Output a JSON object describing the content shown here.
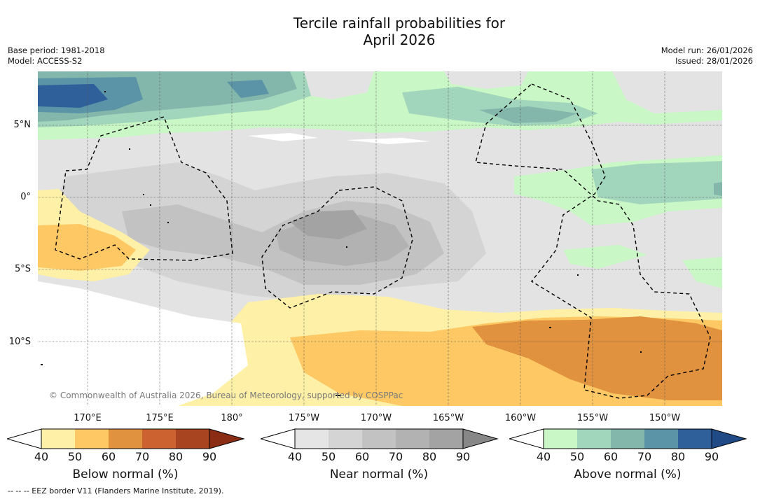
{
  "title_line1": "Tercile rainfall probabilities for",
  "title_line2": "April 2026",
  "base_period": "Base period: 1981-2018",
  "model": "Model: ACCESS-S2",
  "model_run": "Model run: 26/01/2026",
  "issued": "Issued: 28/01/2026",
  "lat_labels": [
    "5°N",
    "0°",
    "5°S",
    "10°S"
  ],
  "lon_labels": [
    "170°E",
    "175°E",
    "180°",
    "175°W",
    "170°W",
    "165°W",
    "160°W",
    "155°W",
    "150°W"
  ],
  "copyright": "© Commonwealth of Australia 2026, Bureau of Meteorology, supported by COSPPac",
  "colorbars": [
    {
      "title": "Below normal (%)",
      "ticks": [
        "40",
        "50",
        "60",
        "70",
        "80",
        "90"
      ],
      "colors": [
        "#fff0a8",
        "#fec965",
        "#e0923f",
        "#cc6230",
        "#a8441f",
        "#8a2d14"
      ]
    },
    {
      "title": "Near normal (%)",
      "ticks": [
        "40",
        "50",
        "60",
        "70",
        "80",
        "90"
      ],
      "colors": [
        "#e5e5e5",
        "#d4d4d4",
        "#c2c2c2",
        "#b2b2b2",
        "#a3a3a3",
        "#878787"
      ]
    },
    {
      "title": "Above normal (%)",
      "ticks": [
        "40",
        "50",
        "60",
        "70",
        "80",
        "90"
      ],
      "colors": [
        "#c9f7c5",
        "#a2d6bc",
        "#84b7ab",
        "#5a94a6",
        "#30609a",
        "#1f4a86"
      ]
    }
  ],
  "footnote": "--  --  -- EEZ border V11 (Flanders Marine Institute, 2019)."
}
